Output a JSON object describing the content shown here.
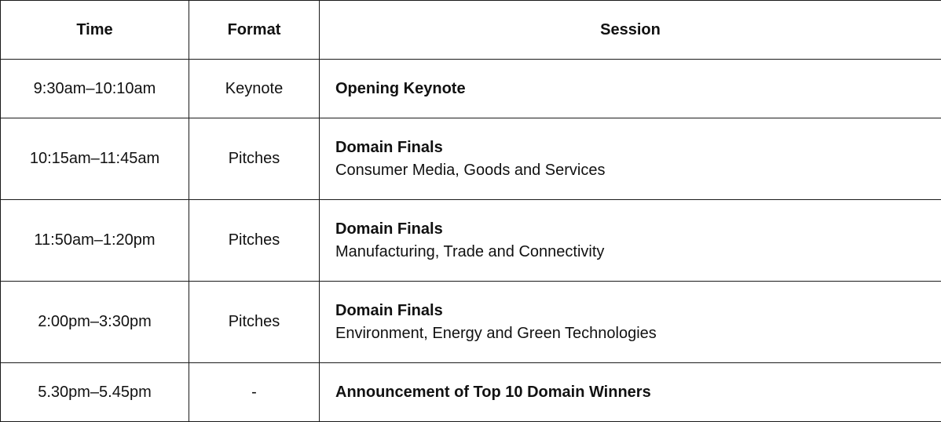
{
  "headers": {
    "time": "Time",
    "format": "Format",
    "session": "Session"
  },
  "rows": [
    {
      "time": "9:30am–10:10am",
      "format": "Keynote",
      "title": "Opening Keynote",
      "desc": ""
    },
    {
      "time": "10:15am–11:45am",
      "format": "Pitches",
      "title": "Domain Finals",
      "desc": "Consumer Media, Goods and Services"
    },
    {
      "time": "11:50am–1:20pm",
      "format": "Pitches",
      "title": "Domain Finals",
      "desc": "Manufacturing, Trade and Connectivity"
    },
    {
      "time": "2:00pm–3:30pm",
      "format": "Pitches",
      "title": "Domain Finals",
      "desc": "Environment, Energy and Green Technologies"
    },
    {
      "time": "5.30pm–5.45pm",
      "format": "-",
      "title": "Announcement of Top 10 Domain Winners",
      "desc": ""
    }
  ]
}
